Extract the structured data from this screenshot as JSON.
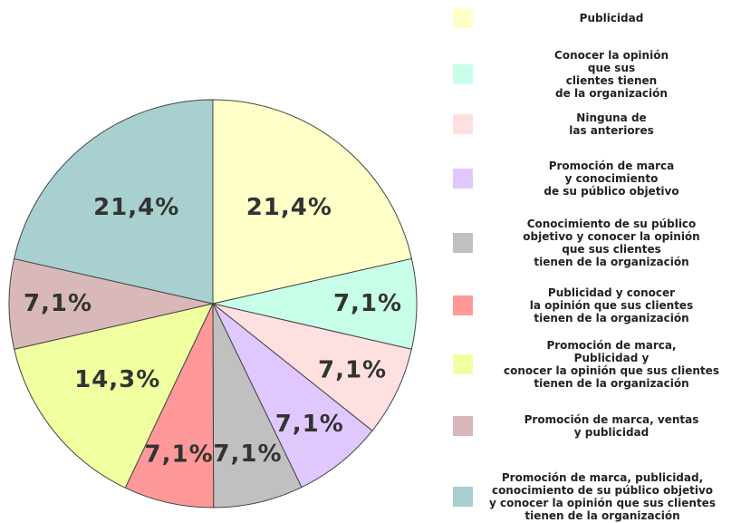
{
  "chart_data": {
    "type": "pie",
    "categories": [
      "Publicidad",
      "Conocer la opinión\nque sus\nclientes tienen\nde la organización",
      "Ninguna de\nlas anteriores",
      "Promoción de marca\ny conocimiento\nde su público objetivo",
      "Conocimiento de su  público\nobjetivo y conocer la opinión\nque sus clientes\ntienen de la organización",
      "Publicidad y conocer\nla opinión que sus clientes\ntienen de la organización",
      "Promoción de marca,\nPublicidad y\nconocer la opinión que sus clientes\ntienen de la organización",
      "Promoción de marca, ventas\ny publicidad",
      "Promoción de marca, publicidad,\nconocimiento de su público objetivo\ny conocer la opinión que sus clientes\ntienen de la organización"
    ],
    "values": [
      21.4,
      7.1,
      7.1,
      7.1,
      7.1,
      7.1,
      14.3,
      7.1,
      21.4
    ],
    "value_labels": [
      "21,4%",
      "7,1%",
      "7,1%",
      "7,1%",
      "7,1%",
      "7,1%",
      "14,3%",
      "7,1%",
      "21,4%"
    ],
    "colors": [
      "#ffffc8",
      "#c8ffe8",
      "#ffe0e0",
      "#e0c8ff",
      "#c0c0c0",
      "#ff9898",
      "#f0ffa0",
      "#d8b8b8",
      "#a8d0d0"
    ]
  }
}
